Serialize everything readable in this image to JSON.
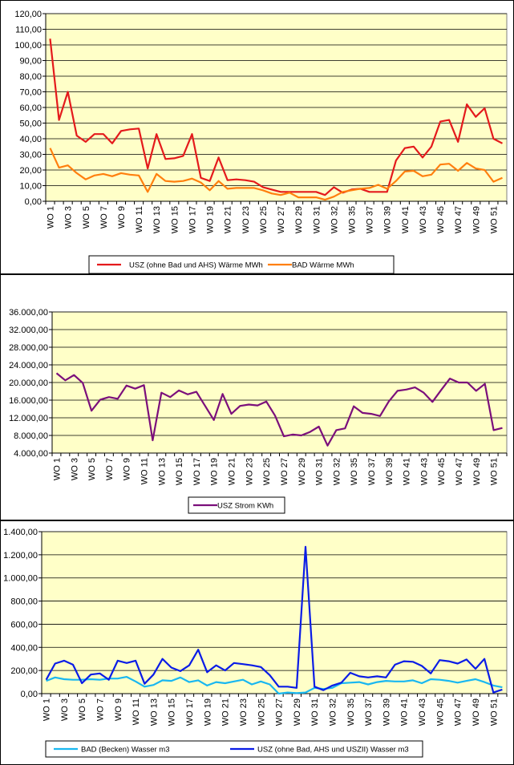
{
  "colors": {
    "plot_bg": "#FFFFC8",
    "grid": "#000000",
    "usz_waerme": "#E41A1C",
    "bad_waerme": "#FF7F0E",
    "usz_strom": "#7B0F7B",
    "bad_wasser": "#19B7F0",
    "usz_wasser": "#0A1CE6"
  },
  "chart_data": [
    {
      "type": "line",
      "x_tick_labels": [
        "WO 1",
        "WO 3",
        "WO 5",
        "WO 7",
        "WO 9",
        "WO 11",
        "WO 13",
        "WO 15",
        "WO 17",
        "WO 19",
        "WO 21",
        "WO 23",
        "WO 25",
        "WO 27",
        "WO 29",
        "WO 31",
        "WO 32",
        "WO 35",
        "WO 37",
        "WO 39",
        "WO 41",
        "WO 43",
        "WO 45",
        "WO 47",
        "WO 49",
        "WO 51"
      ],
      "y_tick_labels": [
        "0,00",
        "10,00",
        "20,00",
        "30,00",
        "40,00",
        "50,00",
        "60,00",
        "70,00",
        "80,00",
        "90,00",
        "100,00",
        "110,00",
        "120,00"
      ],
      "ylim": [
        0,
        120
      ],
      "grid": true,
      "legend_position": "bottom",
      "series": [
        {
          "name": "USZ (ohne Bad und AHS) Wärme  MWh",
          "color": "#E41A1C",
          "values": [
            104,
            52,
            70,
            42,
            38,
            43,
            43,
            37,
            45,
            46,
            46.5,
            21,
            43,
            27,
            27.5,
            29,
            43,
            15,
            13,
            28,
            13.5,
            14,
            13.5,
            12.5,
            9,
            7.5,
            6,
            6,
            6,
            6,
            6,
            4,
            9,
            5.5,
            7.5,
            8,
            6,
            6,
            6,
            26,
            34,
            35,
            28,
            35,
            51,
            52,
            38,
            62,
            54,
            59.5,
            40,
            37
          ]
        },
        {
          "name": "BAD Wärme  MWh",
          "color": "#FF7F0E",
          "values": [
            34,
            21.5,
            23,
            18,
            14,
            16.5,
            17.5,
            16,
            18,
            17,
            16.5,
            6,
            17.5,
            13,
            12.5,
            13,
            14.5,
            12,
            7,
            13,
            8,
            8.5,
            8.5,
            8.5,
            7,
            5,
            4,
            5.5,
            2.5,
            2.5,
            2.5,
            1,
            3,
            6,
            7,
            8,
            8.5,
            10.5,
            8,
            13,
            19,
            19.5,
            16,
            17,
            23.5,
            24,
            19.5,
            24.5,
            21,
            20,
            12.5,
            15
          ]
        }
      ]
    },
    {
      "type": "line",
      "x_tick_labels": [
        "WO 1",
        "WO 3",
        "WO 5",
        "WO 7",
        "WO 9",
        "WO 11",
        "WO 13",
        "WO 15",
        "WO 17",
        "WO 19",
        "WO 21",
        "WO 23",
        "WO 25",
        "WO 27",
        "WO 29",
        "WO 31",
        "WO 32",
        "WO 35",
        "WO 37",
        "WO 39",
        "WO 41",
        "WO 43",
        "WO 45",
        "WO 47",
        "WO 49",
        "WO 51"
      ],
      "y_tick_labels": [
        "4.000,00",
        "8.000,00",
        "12.000,00",
        "16.000,00",
        "20.000,00",
        "24.000,00",
        "28.000,00",
        "32.000,00",
        "36.000,00"
      ],
      "ylim": [
        4000,
        36000
      ],
      "grid": true,
      "legend_position": "bottom",
      "series": [
        {
          "name": "USZ Strom  KWh",
          "color": "#7B0F7B",
          "values": [
            22100,
            20500,
            21700,
            19900,
            13600,
            16100,
            16700,
            16300,
            19300,
            18600,
            19400,
            6900,
            17700,
            16700,
            18200,
            17300,
            17900,
            14700,
            11500,
            17400,
            12900,
            14700,
            15000,
            14800,
            15700,
            12500,
            7800,
            8200,
            8000,
            8800,
            10000,
            5700,
            9200,
            9600,
            14600,
            13100,
            12900,
            12400,
            15700,
            18100,
            18400,
            18900,
            17700,
            15600,
            18300,
            20900,
            20000,
            20000,
            18100,
            19700,
            9200,
            9700
          ]
        }
      ]
    },
    {
      "type": "line",
      "x_tick_labels": [
        "WO 1",
        "WO 3",
        "WO 5",
        "WO 7",
        "WO 9",
        "WO 11",
        "WO 13",
        "WO 15",
        "WO 17",
        "WO 19",
        "WO 21",
        "WO 23",
        "WO 25",
        "WO 27",
        "WO 29",
        "WO 31",
        "WO 32",
        "WO 35",
        "WO 37",
        "WO 39",
        "WO 41",
        "WO 43",
        "WO 45",
        "WO 47",
        "WO 49",
        "WO 51"
      ],
      "y_tick_labels": [
        "0,00",
        "200,00",
        "400,00",
        "600,00",
        "800,00",
        "1.000,00",
        "1.200,00",
        "1.400,00"
      ],
      "ylim": [
        0,
        1400
      ],
      "grid": true,
      "legend_position": "bottom",
      "series": [
        {
          "name": "BAD (Becken)                    Wasser m3",
          "color": "#19B7F0",
          "values": [
            110,
            140,
            125,
            120,
            120,
            125,
            120,
            130,
            130,
            145,
            105,
            60,
            75,
            115,
            110,
            140,
            100,
            115,
            70,
            100,
            90,
            105,
            120,
            80,
            105,
            80,
            0,
            10,
            5,
            10,
            50,
            40,
            50,
            90,
            95,
            100,
            80,
            100,
            110,
            105,
            105,
            115,
            90,
            125,
            120,
            110,
            95,
            110,
            125,
            100,
            70,
            55
          ]
        },
        {
          "name": "USZ (ohne Bad, AHS und USZII) Wasser  m3",
          "color": "#0A1CE6",
          "values": [
            120,
            260,
            285,
            250,
            90,
            165,
            175,
            120,
            285,
            265,
            285,
            85,
            165,
            300,
            225,
            195,
            245,
            380,
            185,
            245,
            200,
            265,
            255,
            245,
            230,
            160,
            60,
            60,
            50,
            1270,
            60,
            30,
            70,
            95,
            180,
            150,
            140,
            150,
            140,
            250,
            280,
            275,
            240,
            175,
            290,
            280,
            260,
            295,
            215,
            300,
            10,
            35
          ]
        }
      ]
    }
  ]
}
